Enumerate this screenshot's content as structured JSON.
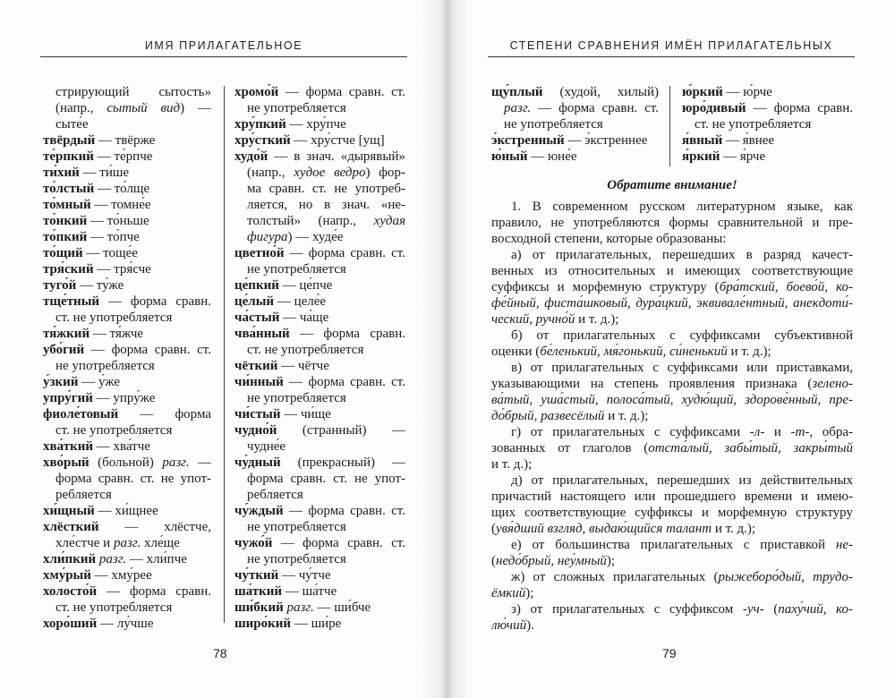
{
  "left_page": {
    "running_head": "ИМЯ ПРИЛАГАТЕЛЬНОЕ",
    "page_number": "78",
    "col1": [
      {
        "j": true,
        "ind": true,
        "s": [
          [
            "",
            "стрирующий сытость»"
          ]
        ]
      },
      {
        "j": true,
        "ind": true,
        "s": [
          [
            "",
            "(напр., "
          ],
          [
            "i",
            "сытый вид"
          ],
          [
            "",
            ") —"
          ]
        ]
      },
      {
        "ind": true,
        "s": [
          [
            "",
            "сыте́е"
          ]
        ]
      },
      {
        "s": [
          [
            "b",
            "твёрдый"
          ],
          [
            "",
            " — твёрже"
          ]
        ]
      },
      {
        "s": [
          [
            "b",
            "те́рпкий"
          ],
          [
            "",
            " — те́рпче"
          ]
        ]
      },
      {
        "s": [
          [
            "b",
            "ти́хий"
          ],
          [
            "",
            " — ти́ше"
          ]
        ]
      },
      {
        "s": [
          [
            "b",
            "то́лстый"
          ],
          [
            "",
            " — то́лще"
          ]
        ]
      },
      {
        "s": [
          [
            "b",
            "то́мный"
          ],
          [
            "",
            " — томне́е"
          ]
        ]
      },
      {
        "s": [
          [
            "b",
            "то́нкий"
          ],
          [
            "",
            " — то́ньше"
          ]
        ]
      },
      {
        "s": [
          [
            "b",
            "то́пкий"
          ],
          [
            "",
            " — то́пче"
          ]
        ]
      },
      {
        "s": [
          [
            "b",
            "то́щий"
          ],
          [
            "",
            " — тоще́е"
          ]
        ]
      },
      {
        "s": [
          [
            "b",
            "тря́ский"
          ],
          [
            "",
            " — тря́сче"
          ]
        ]
      },
      {
        "s": [
          [
            "b",
            "туго́й"
          ],
          [
            "",
            " — ту́же"
          ]
        ]
      },
      {
        "j": true,
        "s": [
          [
            "b",
            "тще́тный"
          ],
          [
            "",
            " — форма сравн."
          ]
        ]
      },
      {
        "ind": true,
        "s": [
          [
            "",
            "ст. не употребляется"
          ]
        ]
      },
      {
        "s": [
          [
            "b",
            "тя́жкий"
          ],
          [
            "",
            " — тя́жче"
          ]
        ]
      },
      {
        "j": true,
        "s": [
          [
            "b",
            "убо́гий"
          ],
          [
            "",
            " — форма сравн. ст."
          ]
        ]
      },
      {
        "ind": true,
        "s": [
          [
            "",
            "не употребляется"
          ]
        ]
      },
      {
        "s": [
          [
            "b",
            "у́зкий"
          ],
          [
            "",
            " — у́же"
          ]
        ]
      },
      {
        "s": [
          [
            "b",
            "упру́гий"
          ],
          [
            "",
            " — упру́же"
          ]
        ]
      },
      {
        "j": true,
        "s": [
          [
            "b",
            "фиоле́товый"
          ],
          [
            "",
            " — форма сравн."
          ]
        ]
      },
      {
        "ind": true,
        "s": [
          [
            "",
            "ст. не употребляется"
          ]
        ]
      },
      {
        "s": [
          [
            "b",
            "хва́ткий"
          ],
          [
            "",
            " — хва́тче"
          ]
        ]
      },
      {
        "j": true,
        "s": [
          [
            "b",
            "хво́рый"
          ],
          [
            "",
            " (больной) "
          ],
          [
            "i",
            "разг."
          ],
          [
            "",
            " —"
          ]
        ]
      },
      {
        "j": true,
        "ind": true,
        "s": [
          [
            "",
            "форма сравн. ст. не упот-"
          ]
        ]
      },
      {
        "ind": true,
        "s": [
          [
            "",
            "ребляется"
          ]
        ]
      },
      {
        "s": [
          [
            "b",
            "хи́щный"
          ],
          [
            "",
            " — хи́щнее"
          ]
        ]
      },
      {
        "j": true,
        "s": [
          [
            "b",
            "хлёсткий"
          ],
          [
            "",
            " — хлёстче,"
          ]
        ]
      },
      {
        "ind": true,
        "s": [
          [
            "",
            "хле́стче и "
          ],
          [
            "i",
            "разг."
          ],
          [
            "",
            " хле́ще"
          ]
        ]
      },
      {
        "s": [
          [
            "b",
            "хли́пкий"
          ],
          [
            "i",
            " разг."
          ],
          [
            "",
            " — хли́пче"
          ]
        ]
      },
      {
        "s": [
          [
            "b",
            "хму́рый"
          ],
          [
            "",
            " — хму́рее"
          ]
        ]
      },
      {
        "j": true,
        "s": [
          [
            "b",
            "холосто́й"
          ],
          [
            "",
            " — форма сравн."
          ]
        ]
      },
      {
        "ind": true,
        "s": [
          [
            "",
            "ст. не употребляется"
          ]
        ]
      },
      {
        "s": [
          [
            "b",
            "хоро́ший"
          ],
          [
            "",
            " — лу́чше"
          ]
        ]
      }
    ],
    "col2": [
      {
        "j": true,
        "s": [
          [
            "b",
            "хромо́й"
          ],
          [
            "",
            " — форма сравн. ст."
          ]
        ]
      },
      {
        "ind": true,
        "s": [
          [
            "",
            "не употребляется"
          ]
        ]
      },
      {
        "s": [
          [
            "b",
            "хру́пкий"
          ],
          [
            "",
            " — хру́пче"
          ]
        ]
      },
      {
        "s": [
          [
            "b",
            "хру́сткий"
          ],
          [
            "",
            " — хру́стче [ущ]"
          ]
        ]
      },
      {
        "j": true,
        "s": [
          [
            "b",
            "худо́й"
          ],
          [
            "",
            " — в знач. «дырявый»"
          ]
        ]
      },
      {
        "j": true,
        "ind": true,
        "s": [
          [
            "",
            "(напр., "
          ],
          [
            "i",
            "худое ведро"
          ],
          [
            "",
            ") фор-"
          ]
        ]
      },
      {
        "j": true,
        "ind": true,
        "s": [
          [
            "",
            "ма сравн. ст. не употреб-"
          ]
        ]
      },
      {
        "j": true,
        "ind": true,
        "s": [
          [
            "",
            "ляется, но в знач. «не-"
          ]
        ]
      },
      {
        "j": true,
        "ind": true,
        "s": [
          [
            "",
            "толстый» (напр., "
          ],
          [
            "i",
            "худая"
          ]
        ]
      },
      {
        "ind": true,
        "s": [
          [
            "i",
            "фигура"
          ],
          [
            "",
            ") — худе́е"
          ]
        ]
      },
      {
        "j": true,
        "s": [
          [
            "b",
            "цветно́й"
          ],
          [
            "",
            " — форма сравн. ст."
          ]
        ]
      },
      {
        "ind": true,
        "s": [
          [
            "",
            "не употребляется"
          ]
        ]
      },
      {
        "s": [
          [
            "b",
            "це́пкий"
          ],
          [
            "",
            " — це́пче"
          ]
        ]
      },
      {
        "s": [
          [
            "b",
            "це́лый"
          ],
          [
            "",
            " — целе́е"
          ]
        ]
      },
      {
        "s": [
          [
            "b",
            "ча́стый"
          ],
          [
            "",
            " — ча́ще"
          ]
        ]
      },
      {
        "j": true,
        "s": [
          [
            "b",
            "чва́нный"
          ],
          [
            "",
            " — форма сравн."
          ]
        ]
      },
      {
        "ind": true,
        "s": [
          [
            "",
            "ст. не употребляется"
          ]
        ]
      },
      {
        "s": [
          [
            "b",
            "чёткий"
          ],
          [
            "",
            " — чётче"
          ]
        ]
      },
      {
        "j": true,
        "s": [
          [
            "b",
            "чи́нный"
          ],
          [
            "",
            " — форма сравн. ст."
          ]
        ]
      },
      {
        "ind": true,
        "s": [
          [
            "",
            "не употребляется"
          ]
        ]
      },
      {
        "s": [
          [
            "b",
            "чи́стый"
          ],
          [
            "",
            " — чи́ще"
          ]
        ]
      },
      {
        "j": true,
        "s": [
          [
            "b",
            "чудно́й"
          ],
          [
            "",
            " (странный) —"
          ]
        ]
      },
      {
        "ind": true,
        "s": [
          [
            "",
            "чудне́е"
          ]
        ]
      },
      {
        "j": true,
        "s": [
          [
            "b",
            "чу́дный"
          ],
          [
            "",
            " (прекрасный) —"
          ]
        ]
      },
      {
        "j": true,
        "ind": true,
        "s": [
          [
            "",
            "форма сравн. ст. не упот-"
          ]
        ]
      },
      {
        "ind": true,
        "s": [
          [
            "",
            "ребляется"
          ]
        ]
      },
      {
        "j": true,
        "s": [
          [
            "b",
            "чу́ждый"
          ],
          [
            "",
            " — форма сравн. ст."
          ]
        ]
      },
      {
        "ind": true,
        "s": [
          [
            "",
            "не употребляется"
          ]
        ]
      },
      {
        "j": true,
        "s": [
          [
            "b",
            "чужо́й"
          ],
          [
            "",
            " — форма сравн. ст."
          ]
        ]
      },
      {
        "ind": true,
        "s": [
          [
            "",
            "не употребляется"
          ]
        ]
      },
      {
        "s": [
          [
            "b",
            "чу́ткий"
          ],
          [
            "",
            " — чу́тче"
          ]
        ]
      },
      {
        "s": [
          [
            "b",
            "ша́ткий"
          ],
          [
            "",
            " — ша́тче"
          ]
        ]
      },
      {
        "s": [
          [
            "b",
            "ши́бкий"
          ],
          [
            "i",
            " разг."
          ],
          [
            "",
            " — ши́бче"
          ]
        ]
      },
      {
        "s": [
          [
            "b",
            "широ́кий"
          ],
          [
            "",
            " — ши́ре"
          ]
        ]
      }
    ]
  },
  "right_page": {
    "running_head": "СТЕПЕНИ СРАВНЕНИЯ ИМЁН ПРИЛАГАТЕЛЬНЫХ",
    "page_number": "79",
    "col1": [
      {
        "j": true,
        "s": [
          [
            "b",
            "щу́плый"
          ],
          [
            "",
            " (худой, хилый)"
          ]
        ]
      },
      {
        "j": true,
        "ind": true,
        "s": [
          [
            "i",
            "разг."
          ],
          [
            "",
            " — форма сравн. ст."
          ]
        ]
      },
      {
        "ind": true,
        "s": [
          [
            "",
            "не употребляется"
          ]
        ]
      },
      {
        "s": [
          [
            "b",
            "э́кстренный"
          ],
          [
            "",
            " — э́кстреннее"
          ]
        ]
      },
      {
        "s": [
          [
            "b",
            "ю́ный"
          ],
          [
            "",
            " — юне́е"
          ]
        ]
      }
    ],
    "col2": [
      {
        "s": [
          [
            "b",
            "ю́ркий"
          ],
          [
            "",
            " — ю́рче"
          ]
        ]
      },
      {
        "j": true,
        "s": [
          [
            "b",
            "юро́дивый"
          ],
          [
            "",
            " — форма сравн."
          ]
        ]
      },
      {
        "ind": true,
        "s": [
          [
            "",
            "ст. не употребляется"
          ]
        ]
      },
      {
        "s": [
          [
            "b",
            "я́вный"
          ],
          [
            "",
            " — я́внее"
          ]
        ]
      },
      {
        "s": [
          [
            "b",
            "я́ркий"
          ],
          [
            "",
            " — я́рче"
          ]
        ]
      }
    ],
    "notice_heading": "Обратите внимание!",
    "text": [
      {
        "j": true,
        "par": true,
        "s": [
          [
            "",
            "1. В современном русском литературном языке, как"
          ]
        ]
      },
      {
        "j": true,
        "s": [
          [
            "",
            "правило, не употребляются формы сравнительной и пре-"
          ]
        ]
      },
      {
        "s": [
          [
            "",
            "восходной степени, которые образованы:"
          ]
        ]
      },
      {
        "j": true,
        "par": true,
        "s": [
          [
            "",
            "а) от прилагательных, перешедших в разряд качест-"
          ]
        ]
      },
      {
        "j": true,
        "s": [
          [
            "",
            "венных из относительных и имеющих соответствующие"
          ]
        ]
      },
      {
        "j": true,
        "s": [
          [
            "",
            "суффиксы и морфемную структуру ("
          ],
          [
            "i",
            "бра́тский, боево́й, ко-"
          ]
        ]
      },
      {
        "j": true,
        "s": [
          [
            "i",
            "фе́йный, фиста́шковый, дура́цкий, эквивале́нтный, анекдоти́-"
          ]
        ]
      },
      {
        "s": [
          [
            "i",
            "ческий, ручно́й"
          ],
          [
            "",
            " и т. д.);"
          ]
        ]
      },
      {
        "j": true,
        "par": true,
        "s": [
          [
            "",
            "б) от прилагательных с суффиксами субъективной"
          ]
        ]
      },
      {
        "s": [
          [
            "",
            "оценки ("
          ],
          [
            "i",
            "бе́ленький, мя́гонький, си́ненький"
          ],
          [
            "",
            " и т. д.);"
          ]
        ]
      },
      {
        "j": true,
        "par": true,
        "s": [
          [
            "",
            "в) от прилагательных с суффиксами или приставками,"
          ]
        ]
      },
      {
        "j": true,
        "s": [
          [
            "",
            "указывающими на степень проявления признака ("
          ],
          [
            "i",
            "зелено-"
          ]
        ]
      },
      {
        "j": true,
        "s": [
          [
            "i",
            "ва́тый, уша́стый, полоса́тый, худю́щий, здорове́нный, пре-"
          ]
        ]
      },
      {
        "s": [
          [
            "i",
            "до́брый, развесёлый"
          ],
          [
            "",
            " и т. д.);"
          ]
        ]
      },
      {
        "j": true,
        "par": true,
        "s": [
          [
            "",
            "г) от прилагательных с суффиксами "
          ],
          [
            "i",
            "-л-"
          ],
          [
            "",
            " и "
          ],
          [
            "i",
            "-т-"
          ],
          [
            "",
            ", обра-"
          ]
        ]
      },
      {
        "j": true,
        "s": [
          [
            "",
            "зованных от глаголов ("
          ],
          [
            "i",
            "отста́лый, забы́тый, закры́тый"
          ]
        ]
      },
      {
        "s": [
          [
            "",
            "и т. д.);"
          ]
        ]
      },
      {
        "j": true,
        "par": true,
        "s": [
          [
            "",
            "д) от прилагательных, перешедших из действительных"
          ]
        ]
      },
      {
        "j": true,
        "s": [
          [
            "",
            "причастий настоящего или прошедшего времени и имею-"
          ]
        ]
      },
      {
        "j": true,
        "s": [
          [
            "",
            "щих соответствующие суффиксы и морфемную структуру"
          ]
        ]
      },
      {
        "s": [
          [
            "",
            "("
          ],
          [
            "i",
            "увя́дший взгляд, выдаю́щийся талант"
          ],
          [
            "",
            " и т. д.);"
          ]
        ]
      },
      {
        "j": true,
        "par": true,
        "s": [
          [
            "",
            "е) от большинства прилагательных с приставкой "
          ],
          [
            "i",
            "не-"
          ]
        ]
      },
      {
        "s": [
          [
            "",
            "("
          ],
          [
            "i",
            "недо́брый, неу́мный"
          ],
          [
            "",
            ");"
          ]
        ]
      },
      {
        "j": true,
        "par": true,
        "s": [
          [
            "",
            "ж) от сложных прилагательных ("
          ],
          [
            "i",
            "рыжеборо́дый, трудо-"
          ]
        ]
      },
      {
        "s": [
          [
            "i",
            "ёмкий"
          ],
          [
            "",
            ");"
          ]
        ]
      },
      {
        "j": true,
        "par": true,
        "s": [
          [
            "",
            "з) от прилагательных с суффиксом "
          ],
          [
            "i",
            "-уч-"
          ],
          [
            "",
            " ("
          ],
          [
            "i",
            "паху́чий, ко-"
          ]
        ]
      },
      {
        "s": [
          [
            "i",
            "лю́чий"
          ],
          [
            "",
            ")."
          ]
        ]
      }
    ]
  }
}
